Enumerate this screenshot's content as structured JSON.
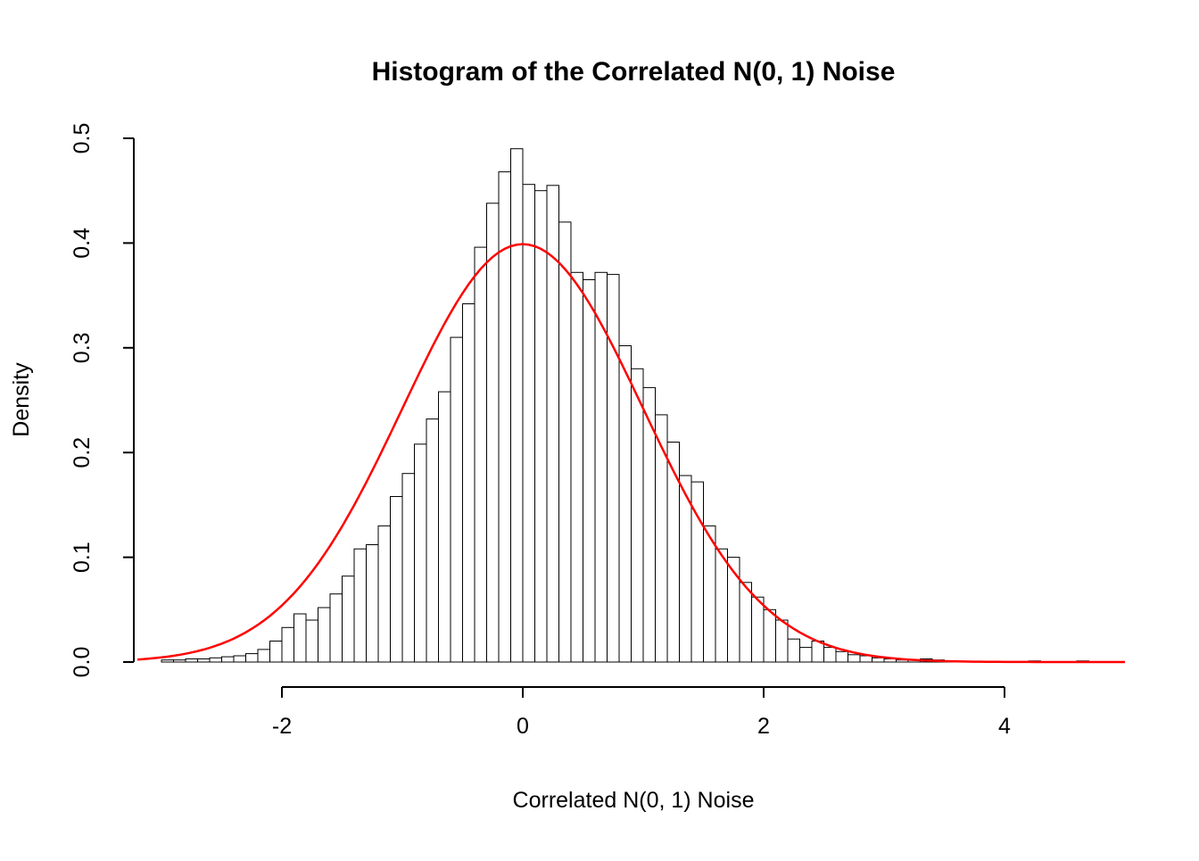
{
  "figure": {
    "title": "Histogram of the Correlated N(0, 1) Noise",
    "xlabel": "Correlated N(0, 1) Noise",
    "ylabel": "Density"
  },
  "chart_data": {
    "type": "bar",
    "subtype": "histogram-with-density-curve",
    "title": "Histogram of the Correlated N(0, 1) Noise",
    "xlabel": "Correlated N(0, 1) Noise",
    "ylabel": "Density",
    "grid": false,
    "legend": false,
    "xlim": [
      -3.2,
      5.0
    ],
    "ylim": [
      0.0,
      0.5
    ],
    "x_ticks": [
      -2,
      0,
      2,
      4
    ],
    "x_tick_labels": [
      "-2",
      "0",
      "2",
      "4"
    ],
    "y_ticks": [
      0.0,
      0.1,
      0.2,
      0.3,
      0.4,
      0.5
    ],
    "y_tick_labels": [
      "0.0",
      "0.1",
      "0.2",
      "0.3",
      "0.4",
      "0.5"
    ],
    "bin_width": 0.1,
    "bins": [
      [
        -3.0,
        0.002
      ],
      [
        -2.9,
        0.002
      ],
      [
        -2.8,
        0.003
      ],
      [
        -2.7,
        0.003
      ],
      [
        -2.6,
        0.004
      ],
      [
        -2.5,
        0.005
      ],
      [
        -2.4,
        0.006
      ],
      [
        -2.3,
        0.008
      ],
      [
        -2.2,
        0.012
      ],
      [
        -2.1,
        0.02
      ],
      [
        -2.0,
        0.033
      ],
      [
        -1.9,
        0.046
      ],
      [
        -1.8,
        0.04
      ],
      [
        -1.7,
        0.052
      ],
      [
        -1.6,
        0.065
      ],
      [
        -1.5,
        0.082
      ],
      [
        -1.4,
        0.108
      ],
      [
        -1.3,
        0.112
      ],
      [
        -1.2,
        0.13
      ],
      [
        -1.1,
        0.158
      ],
      [
        -1.0,
        0.18
      ],
      [
        -0.9,
        0.208
      ],
      [
        -0.8,
        0.232
      ],
      [
        -0.7,
        0.258
      ],
      [
        -0.6,
        0.31
      ],
      [
        -0.5,
        0.342
      ],
      [
        -0.4,
        0.396
      ],
      [
        -0.3,
        0.438
      ],
      [
        -0.2,
        0.468
      ],
      [
        -0.1,
        0.49
      ],
      [
        0.0,
        0.456
      ],
      [
        0.1,
        0.45
      ],
      [
        0.2,
        0.455
      ],
      [
        0.3,
        0.42
      ],
      [
        0.4,
        0.372
      ],
      [
        0.5,
        0.365
      ],
      [
        0.6,
        0.372
      ],
      [
        0.7,
        0.37
      ],
      [
        0.8,
        0.302
      ],
      [
        0.9,
        0.28
      ],
      [
        1.0,
        0.262
      ],
      [
        1.1,
        0.236
      ],
      [
        1.2,
        0.21
      ],
      [
        1.3,
        0.178
      ],
      [
        1.4,
        0.172
      ],
      [
        1.5,
        0.13
      ],
      [
        1.6,
        0.108
      ],
      [
        1.7,
        0.1
      ],
      [
        1.8,
        0.076
      ],
      [
        1.9,
        0.062
      ],
      [
        2.0,
        0.05
      ],
      [
        2.1,
        0.04
      ],
      [
        2.2,
        0.022
      ],
      [
        2.3,
        0.014
      ],
      [
        2.4,
        0.02
      ],
      [
        2.5,
        0.014
      ],
      [
        2.6,
        0.01
      ],
      [
        2.7,
        0.007
      ],
      [
        2.8,
        0.006
      ],
      [
        2.9,
        0.004
      ],
      [
        3.0,
        0.003
      ],
      [
        3.1,
        0.002
      ],
      [
        3.2,
        0.002
      ],
      [
        3.3,
        0.003
      ],
      [
        3.4,
        0.002
      ],
      [
        3.5,
        0.001
      ],
      [
        4.2,
        0.001
      ],
      [
        4.6,
        0.001
      ]
    ],
    "bar_fill": "#ffffff",
    "bar_stroke": "#000000",
    "overlay_curve": {
      "type": "normal_pdf",
      "mean": 0,
      "sd": 1,
      "color": "#ff0000",
      "x_range": [
        -3.2,
        5.0
      ],
      "peak_density": 0.4
    }
  }
}
